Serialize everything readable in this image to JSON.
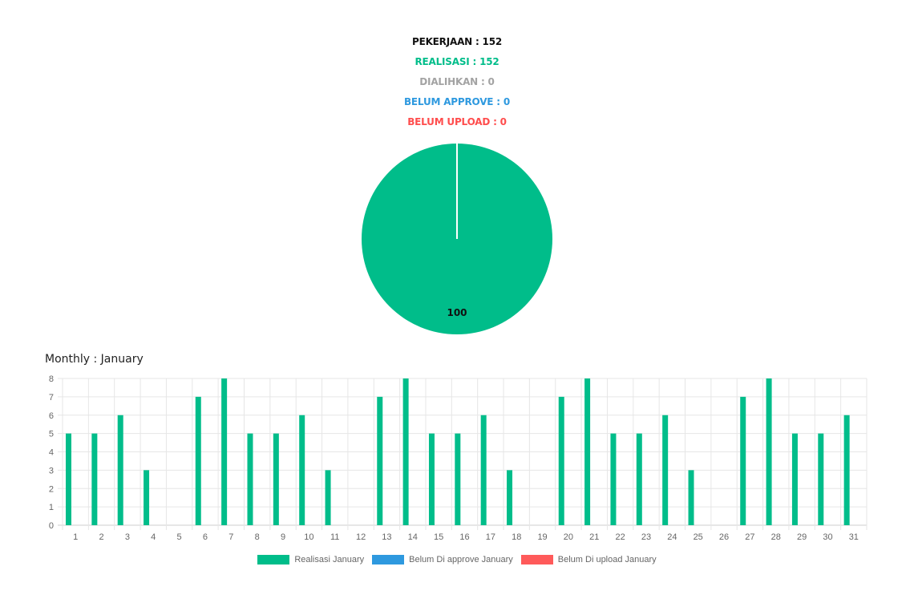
{
  "summary": {
    "pekerjaan": "PEKERJAAN : 152",
    "realisasi": "REALISASI : 152",
    "dialihkan": "DIALIHKAN : 0",
    "belum_approve": "BELUM APPROVE : 0",
    "belum_upload": "BELUM UPLOAD : 0"
  },
  "monthly_title": "Monthly : January",
  "colors": {
    "realisasi": "#00bd8a",
    "belum_approve": "#2e99df",
    "belum_upload": "#ff5a5a",
    "grid": "#e6e6e6",
    "tick": "#666666"
  },
  "chart_data": [
    {
      "type": "pie",
      "slices": [
        {
          "value": 100,
          "label": "100",
          "color": "#00bd8a"
        }
      ]
    },
    {
      "type": "bar",
      "title": "Monthly : January",
      "categories": [
        "1",
        "2",
        "3",
        "4",
        "5",
        "6",
        "7",
        "8",
        "9",
        "10",
        "11",
        "12",
        "13",
        "14",
        "15",
        "16",
        "17",
        "18",
        "19",
        "20",
        "21",
        "22",
        "23",
        "24",
        "25",
        "26",
        "27",
        "28",
        "29",
        "30",
        "31"
      ],
      "series": [
        {
          "name": "Realisasi January",
          "color": "#00bd8a",
          "values": [
            5,
            5,
            6,
            3,
            0,
            7,
            8,
            5,
            5,
            6,
            3,
            0,
            7,
            8,
            5,
            5,
            6,
            3,
            0,
            7,
            8,
            5,
            5,
            6,
            3,
            0,
            7,
            8,
            5,
            5,
            6
          ]
        },
        {
          "name": "Belum Di approve January",
          "color": "#2e99df",
          "values": [
            0,
            0,
            0,
            0,
            0,
            0,
            0,
            0,
            0,
            0,
            0,
            0,
            0,
            0,
            0,
            0,
            0,
            0,
            0,
            0,
            0,
            0,
            0,
            0,
            0,
            0,
            0,
            0,
            0,
            0,
            0
          ]
        },
        {
          "name": "Belum Di upload January",
          "color": "#ff5a5a",
          "values": [
            0,
            0,
            0,
            0,
            0,
            0,
            0,
            0,
            0,
            0,
            0,
            0,
            0,
            0,
            0,
            0,
            0,
            0,
            0,
            0,
            0,
            0,
            0,
            0,
            0,
            0,
            0,
            0,
            0,
            0,
            0
          ]
        }
      ],
      "ylim": [
        0,
        8
      ],
      "yticks": [
        0,
        1,
        2,
        3,
        4,
        5,
        6,
        7,
        8
      ],
      "grid": true,
      "legend": "bottom"
    }
  ]
}
